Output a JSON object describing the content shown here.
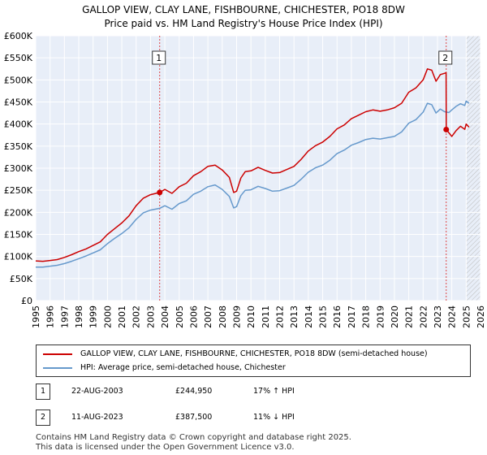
{
  "title": {
    "line1": "GALLOP VIEW, CLAY LANE, FISHBOURNE, CHICHESTER, PO18 8DW",
    "line2": "Price paid vs. HM Land Registry's House Price Index (HPI)"
  },
  "colors": {
    "property": "#cc0000",
    "hpi": "#6699cc",
    "plot_bg": "#e8eef8",
    "grid": "#ffffff",
    "marker_line": "#dd4444",
    "future_hatch": "#bbbbbb"
  },
  "chart_data": {
    "type": "line",
    "title": "Price paid vs. HM Land Registry's House Price Index (HPI)",
    "xlabel": "",
    "ylabel": "",
    "xlim": [
      1995,
      2026
    ],
    "ylim": [
      0,
      600000
    ],
    "x_ticks": [
      "1995",
      "1996",
      "1997",
      "1998",
      "1999",
      "2000",
      "2001",
      "2002",
      "2003",
      "2004",
      "2005",
      "2006",
      "2007",
      "2008",
      "2009",
      "2010",
      "2011",
      "2012",
      "2013",
      "2014",
      "2015",
      "2016",
      "2017",
      "2018",
      "2019",
      "2020",
      "2021",
      "2022",
      "2023",
      "2024",
      "2025",
      "2026"
    ],
    "y_ticks": [
      {
        "value": 0,
        "label": "£0"
      },
      {
        "value": 50000,
        "label": "£50K"
      },
      {
        "value": 100000,
        "label": "£100K"
      },
      {
        "value": 150000,
        "label": "£150K"
      },
      {
        "value": 200000,
        "label": "£200K"
      },
      {
        "value": 250000,
        "label": "£250K"
      },
      {
        "value": 300000,
        "label": "£300K"
      },
      {
        "value": 350000,
        "label": "£350K"
      },
      {
        "value": 400000,
        "label": "£400K"
      },
      {
        "value": 450000,
        "label": "£450K"
      },
      {
        "value": 500000,
        "label": "£500K"
      },
      {
        "value": 550000,
        "label": "£550K"
      },
      {
        "value": 600000,
        "label": "£600K"
      }
    ],
    "future_start": 2025.0,
    "series": [
      {
        "name": "GALLOP VIEW, CLAY LANE, FISHBOURNE, CHICHESTER, PO18 8DW (semi-detached house)",
        "color": "#cc0000",
        "x": [
          1995.0,
          1995.5,
          1996.0,
          1996.5,
          1997.0,
          1997.5,
          1998.0,
          1998.5,
          1999.0,
          1999.5,
          2000.0,
          2000.5,
          2001.0,
          2001.5,
          2002.0,
          2002.5,
          2003.0,
          2003.64,
          2004.0,
          2004.5,
          2005.0,
          2005.5,
          2006.0,
          2006.5,
          2007.0,
          2007.5,
          2008.0,
          2008.5,
          2008.8,
          2009.0,
          2009.3,
          2009.6,
          2010.0,
          2010.5,
          2011.0,
          2011.5,
          2012.0,
          2012.5,
          2013.0,
          2013.5,
          2014.0,
          2014.5,
          2015.0,
          2015.5,
          2016.0,
          2016.5,
          2017.0,
          2017.5,
          2018.0,
          2018.5,
          2019.0,
          2019.5,
          2020.0,
          2020.5,
          2021.0,
          2021.5,
          2022.0,
          2022.3,
          2022.6,
          2022.9,
          2023.2,
          2023.5,
          2023.6,
          2023.61,
          2023.8,
          2024.0,
          2024.3,
          2024.6,
          2024.9,
          2025.0,
          2025.2
        ],
        "y": [
          90000,
          89000,
          91000,
          93000,
          98000,
          104000,
          111000,
          117000,
          125000,
          133000,
          150000,
          163000,
          176000,
          192000,
          215000,
          232000,
          240000,
          244950,
          252000,
          243000,
          258000,
          266000,
          283000,
          292000,
          304000,
          307000,
          296000,
          279000,
          245000,
          248000,
          278000,
          292000,
          294000,
          302000,
          295000,
          289000,
          290000,
          297000,
          304000,
          320000,
          339000,
          351000,
          359000,
          372000,
          389000,
          398000,
          412000,
          420000,
          428000,
          432000,
          429000,
          432000,
          437000,
          447000,
          472000,
          482000,
          500000,
          525000,
          522000,
          497000,
          512000,
          515000,
          516000,
          387500,
          380000,
          372000,
          385000,
          395000,
          388000,
          400000,
          393000
        ]
      },
      {
        "name": "HPI: Average price, semi-detached house, Chichester",
        "color": "#6699cc",
        "x": [
          1995.0,
          1995.5,
          1996.0,
          1996.5,
          1997.0,
          1997.5,
          1998.0,
          1998.5,
          1999.0,
          1999.5,
          2000.0,
          2000.5,
          2001.0,
          2001.5,
          2002.0,
          2002.5,
          2003.0,
          2003.64,
          2004.0,
          2004.5,
          2005.0,
          2005.5,
          2006.0,
          2006.5,
          2007.0,
          2007.5,
          2008.0,
          2008.5,
          2008.8,
          2009.0,
          2009.3,
          2009.6,
          2010.0,
          2010.5,
          2011.0,
          2011.5,
          2012.0,
          2012.5,
          2013.0,
          2013.5,
          2014.0,
          2014.5,
          2015.0,
          2015.5,
          2016.0,
          2016.5,
          2017.0,
          2017.5,
          2018.0,
          2018.5,
          2019.0,
          2019.5,
          2020.0,
          2020.5,
          2021.0,
          2021.5,
          2022.0,
          2022.3,
          2022.6,
          2022.9,
          2023.2,
          2023.5,
          2023.8,
          2024.0,
          2024.3,
          2024.6,
          2024.9,
          2025.0,
          2025.2
        ],
        "y": [
          76000,
          76000,
          78000,
          80000,
          84000,
          89000,
          95000,
          101000,
          108000,
          115000,
          129000,
          141000,
          152000,
          165000,
          184000,
          199000,
          205000,
          209000,
          215000,
          207000,
          220000,
          226000,
          241000,
          248000,
          258000,
          262000,
          252000,
          236000,
          210000,
          213000,
          238000,
          250000,
          251000,
          259000,
          254000,
          248000,
          249000,
          255000,
          261000,
          275000,
          291000,
          301000,
          307000,
          318000,
          333000,
          341000,
          352000,
          358000,
          365000,
          368000,
          366000,
          369000,
          372000,
          382000,
          402000,
          410000,
          427000,
          447000,
          444000,
          425000,
          434000,
          428000,
          426000,
          432000,
          440000,
          446000,
          442000,
          452000,
          447000
        ]
      }
    ],
    "annotations": [
      {
        "label": "1",
        "x": 2003.64,
        "y": 244950
      },
      {
        "label": "2",
        "x": 2023.61,
        "y": 387500
      }
    ]
  },
  "legend": [
    {
      "label": "GALLOP VIEW, CLAY LANE, FISHBOURNE, CHICHESTER, PO18 8DW (semi-detached house)",
      "color": "#cc0000"
    },
    {
      "label": "HPI: Average price, semi-detached house, Chichester",
      "color": "#6699cc"
    }
  ],
  "transactions": [
    {
      "num": "1",
      "date": "22-AUG-2003",
      "price": "£244,950",
      "hpi": "17% ↑ HPI"
    },
    {
      "num": "2",
      "date": "11-AUG-2023",
      "price": "£387,500",
      "hpi": "11% ↓ HPI"
    }
  ],
  "footer": {
    "line1": "Contains HM Land Registry data © Crown copyright and database right 2025.",
    "line2": "This data is licensed under the Open Government Licence v3.0."
  }
}
